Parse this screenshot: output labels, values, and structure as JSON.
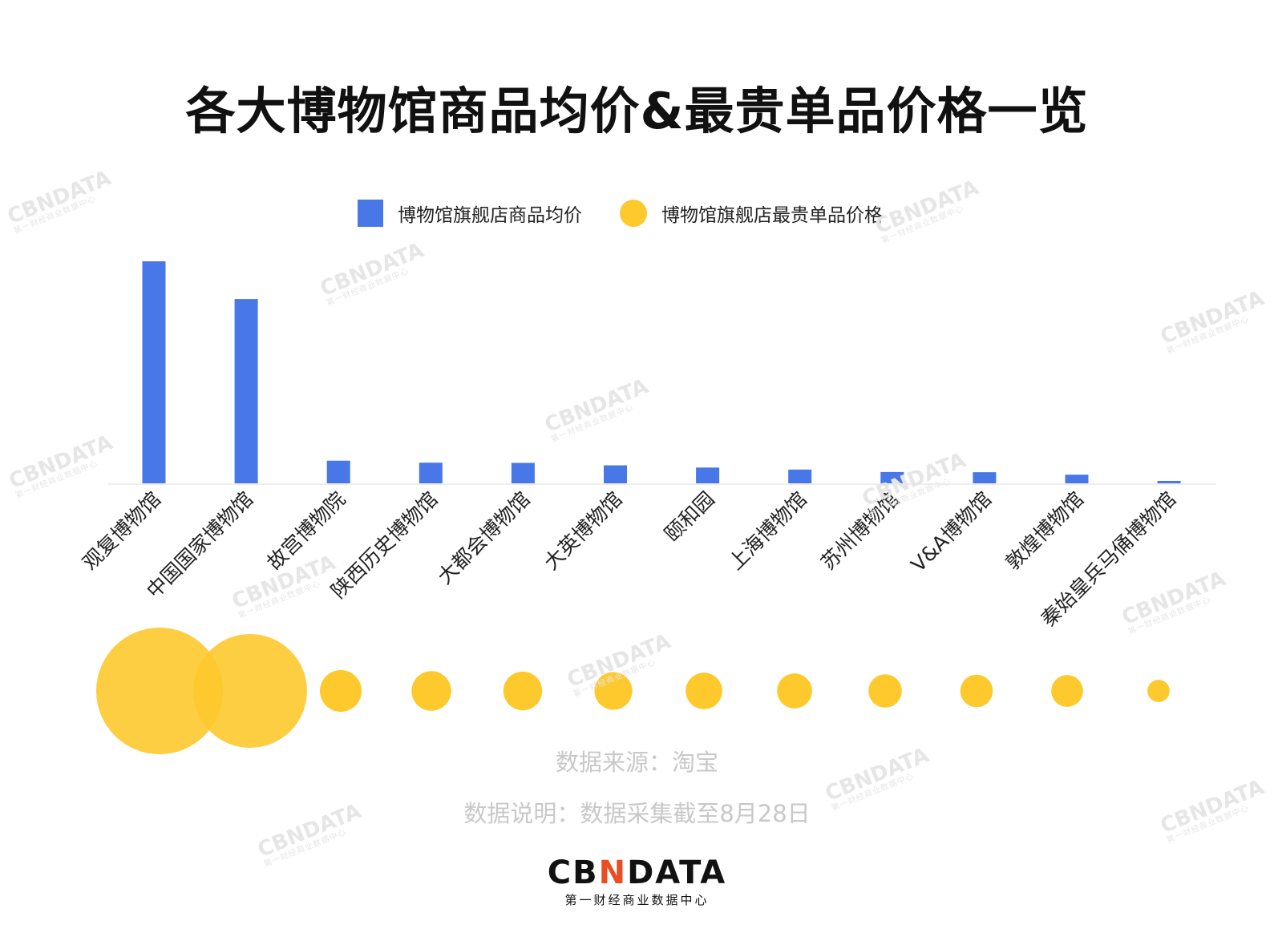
{
  "title": "各大博物馆商品均价&最贵单品价格一览",
  "legend": {
    "bar_label": "博物馆旗舰店商品均价",
    "dot_label": "博物馆旗舰店最贵单品价格"
  },
  "colors": {
    "bar": "#4877e8",
    "dot": "#fdc92d",
    "title": "#111111",
    "note": "#c8c8c8",
    "brand_accent": "#e94e23"
  },
  "chart_data": {
    "type": "bar",
    "categories": [
      "观复博物馆",
      "中国国家博物馆",
      "故宫博物院",
      "陕西历史博物馆",
      "大都会博物馆",
      "大英博物馆",
      "颐和园",
      "上海博物馆",
      "苏州博物馆",
      "V&A博物馆",
      "敦煌博物馆",
      "秦始皇兵马俑博物馆"
    ],
    "series": [
      {
        "values": [
          100,
          83,
          10.2,
          9.3,
          9.2,
          8.1,
          7.1,
          6.2,
          5.1,
          5.0,
          3.9,
          1.1
        ]
      },
      {
        "values": [
          100,
          89,
          11.5,
          10.5,
          10.1,
          9.6,
          9.0,
          8.3,
          7.5,
          7.1,
          6.8,
          2.2
        ]
      }
    ],
    "ylim": [
      0,
      100
    ],
    "grid": false,
    "legend_position": "top-center"
  },
  "footer": {
    "source": "数据来源：淘宝",
    "note": "数据说明：数据采集截至8月28日"
  },
  "brand": {
    "logo_left": "CB",
    "logo_accent": "N",
    "logo_right": "DATA",
    "subtitle": "第一财经商业数据中心"
  },
  "watermark": {
    "text": "CBNDATA",
    "sub": "第一财经商业数据中心"
  }
}
